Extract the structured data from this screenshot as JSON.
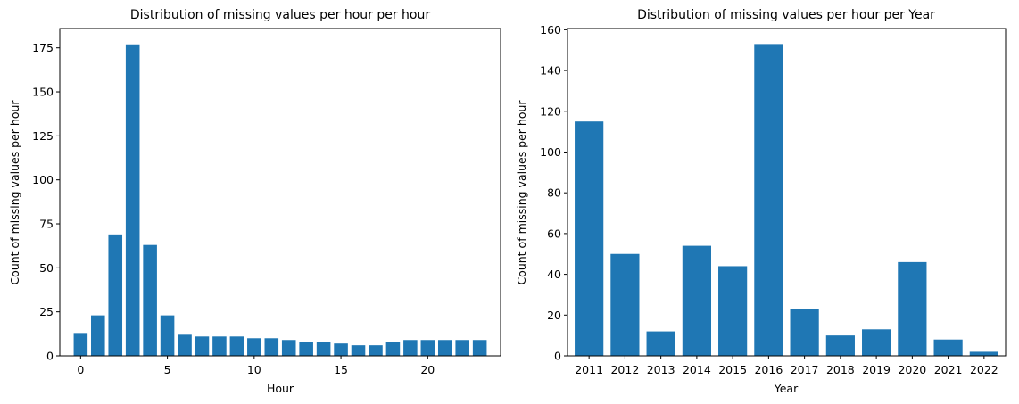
{
  "chart_data": [
    {
      "type": "bar",
      "title": "Distribution of missing values per hour per hour",
      "xlabel": "Hour",
      "ylabel": "Count of missing values per hour",
      "x": [
        0,
        1,
        2,
        3,
        4,
        5,
        6,
        7,
        8,
        9,
        10,
        11,
        12,
        13,
        14,
        15,
        16,
        17,
        18,
        19,
        20,
        21,
        22,
        23
      ],
      "values": [
        13,
        23,
        69,
        177,
        63,
        23,
        12,
        11,
        11,
        11,
        10,
        10,
        9,
        8,
        8,
        7,
        6,
        6,
        8,
        9,
        9,
        9,
        9,
        9
      ],
      "xlim": [
        -1.2,
        24.2
      ],
      "ylim": [
        0,
        186
      ],
      "xticks": [
        0,
        5,
        10,
        15,
        20
      ],
      "yticks": [
        0,
        25,
        50,
        75,
        100,
        125,
        150,
        175
      ],
      "grid": false,
      "bar_color": "#1f77b4"
    },
    {
      "type": "bar",
      "title": "Distribution of missing values per hour per Year",
      "xlabel": "Year",
      "ylabel": "Count of missing values per hour",
      "categories": [
        "2011",
        "2012",
        "2013",
        "2014",
        "2015",
        "2016",
        "2017",
        "2018",
        "2019",
        "2020",
        "2021",
        "2022"
      ],
      "values": [
        115,
        50,
        12,
        54,
        44,
        153,
        23,
        10,
        13,
        46,
        8,
        2
      ],
      "ylim": [
        0,
        160.6
      ],
      "yticks": [
        0,
        20,
        40,
        60,
        80,
        100,
        120,
        140,
        160
      ],
      "grid": false,
      "bar_color": "#1f77b4"
    }
  ]
}
